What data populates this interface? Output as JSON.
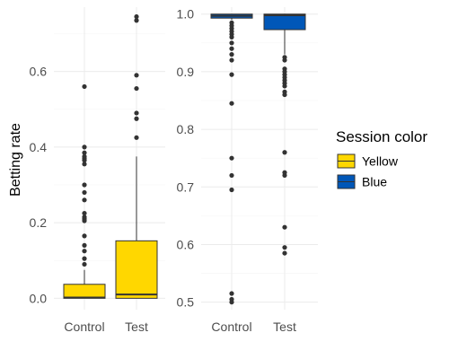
{
  "chart_data": [
    {
      "type": "box",
      "panel": "Yellow",
      "ylabel": "Betting rate",
      "categories": [
        "Control",
        "Test"
      ],
      "ylim": [
        -0.03,
        0.77
      ],
      "yticks": [
        0.0,
        0.2,
        0.4,
        0.6
      ],
      "ytick_labels": [
        "0.0",
        "0.2",
        "0.4",
        "0.6"
      ],
      "color": "#FFD700",
      "boxes": [
        {
          "category": "Control",
          "q1": 0.0,
          "median": 0.002,
          "q3": 0.037,
          "whisker_low": 0.0,
          "whisker_high": 0.075,
          "outliers": [
            0.09,
            0.105,
            0.125,
            0.14,
            0.165,
            0.205,
            0.21,
            0.215,
            0.225,
            0.26,
            0.28,
            0.3,
            0.355,
            0.365,
            0.37,
            0.375,
            0.385,
            0.4,
            0.56
          ]
        },
        {
          "category": "Test",
          "q1": 0.0,
          "median": 0.01,
          "q3": 0.152,
          "whisker_low": 0.0,
          "whisker_high": 0.375,
          "outliers": [
            0.425,
            0.475,
            0.49,
            0.555,
            0.59,
            0.735,
            0.745
          ]
        }
      ]
    },
    {
      "type": "box",
      "panel": "Blue",
      "categories": [
        "Control",
        "Test"
      ],
      "ylim": [
        0.487,
        1.012
      ],
      "yticks": [
        0.5,
        0.6,
        0.7,
        0.8,
        0.9,
        1.0
      ],
      "ytick_labels": [
        "0.5",
        "0.6",
        "0.7",
        "0.8",
        "0.9",
        "1.0"
      ],
      "color": "#0057B8",
      "boxes": [
        {
          "category": "Control",
          "q1": 0.993,
          "median": 0.997,
          "q3": 1.0,
          "whisker_low": 0.99,
          "whisker_high": 1.0,
          "outliers": [
            0.5,
            0.505,
            0.515,
            0.695,
            0.72,
            0.75,
            0.845,
            0.895,
            0.92,
            0.93,
            0.94,
            0.95,
            0.96,
            0.965,
            0.97,
            0.975,
            0.98,
            0.985
          ]
        },
        {
          "category": "Test",
          "q1": 0.973,
          "median": 0.998,
          "q3": 1.0,
          "whisker_low": 0.93,
          "whisker_high": 1.0,
          "outliers": [
            0.585,
            0.595,
            0.63,
            0.72,
            0.725,
            0.76,
            0.86,
            0.865,
            0.875,
            0.88,
            0.885,
            0.89,
            0.895,
            0.9,
            0.905,
            0.92,
            0.925
          ]
        }
      ]
    }
  ],
  "legend": {
    "title": "Session color",
    "placement": "right",
    "items": [
      {
        "label": "Yellow",
        "color": "#FFD700"
      },
      {
        "label": "Blue",
        "color": "#0057B8"
      }
    ]
  }
}
